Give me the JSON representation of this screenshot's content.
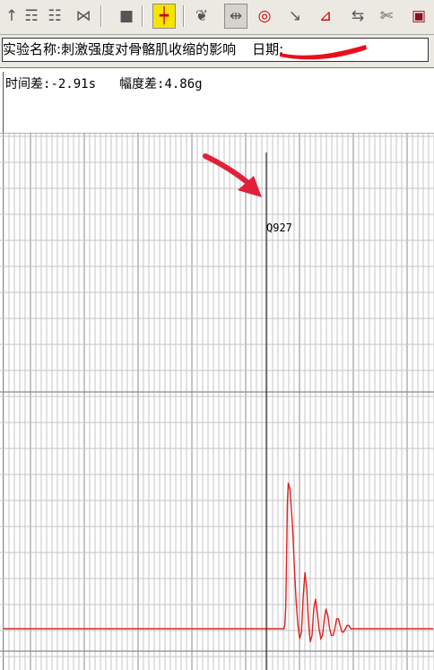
{
  "toolbar": {
    "buttons": [
      {
        "name": "arrow-up-icon",
        "glyph": "↑",
        "pressed": false
      },
      {
        "name": "stimulate-icon",
        "glyph": "☶",
        "pressed": false
      },
      {
        "name": "stack-icon",
        "glyph": "☷",
        "pressed": false
      },
      {
        "name": "scissors-pair-icon",
        "glyph": "⋈",
        "pressed": false
      },
      {
        "name": "gray-block-icon",
        "glyph": "■",
        "pressed": false
      },
      {
        "name": "crosshair-icon",
        "glyph": "┿",
        "pressed": true
      },
      {
        "name": "turtle-icon",
        "glyph": "❦",
        "pressed": false
      },
      {
        "name": "measure-icon",
        "glyph": "⇹",
        "pressed": true
      },
      {
        "name": "target-icon",
        "glyph": "◎",
        "pressed": false
      },
      {
        "name": "slope-icon",
        "glyph": "↘",
        "pressed": false
      },
      {
        "name": "peak-icon",
        "glyph": "⊿",
        "pressed": false
      },
      {
        "name": "align-icon",
        "glyph": "⇆",
        "pressed": false
      },
      {
        "name": "cut-icon",
        "glyph": "✄",
        "pressed": false
      },
      {
        "name": "book-icon",
        "glyph": "▣",
        "pressed": false
      }
    ]
  },
  "experiment": {
    "label": "实验名称:",
    "name": "刺激强度对骨骼肌收缩的影响",
    "date_label": "日期:"
  },
  "readout": {
    "time_label": "时间差:",
    "time_value": "-2.91s",
    "amp_label": "幅度差:",
    "amp_value": "4.86g"
  },
  "marker": {
    "label": "Q927"
  },
  "colors": {
    "trace": "#dd2222",
    "arrow": "#e0203a",
    "grid_major": "#8a8a8a",
    "grid_minor": "#c4c4c4",
    "redaction": "#e8101a"
  },
  "chart_data": {
    "type": "line",
    "title": "",
    "xlabel": "",
    "ylabel": "",
    "grid": true,
    "x": [
      0,
      4,
      8,
      12,
      16,
      18,
      20,
      21,
      22,
      23,
      24,
      25,
      27,
      30,
      32,
      34,
      36,
      38,
      40,
      42,
      44,
      46,
      48,
      50,
      52,
      54,
      56,
      58,
      60,
      62,
      64,
      66,
      68,
      70,
      72,
      74,
      76,
      78,
      80,
      82,
      84,
      86,
      88,
      90,
      92,
      94,
      96,
      98,
      100,
      104,
      108,
      112,
      116,
      120,
      124,
      128,
      132,
      136,
      140,
      144,
      148,
      152,
      156,
      160,
      166,
      172,
      178,
      184,
      190
    ],
    "y": [
      0,
      0,
      0,
      0,
      0,
      0,
      0,
      1,
      6,
      20,
      38,
      44,
      42,
      30,
      18,
      8,
      1,
      -3,
      -1,
      10,
      17,
      12,
      2,
      -4,
      -2,
      6,
      9,
      5,
      0,
      -3,
      -2,
      3,
      6,
      4,
      0,
      -2,
      -2,
      0,
      3,
      3,
      1,
      -1,
      -1,
      0,
      1,
      1,
      0,
      0,
      0,
      0,
      0,
      0,
      0,
      0,
      0,
      0,
      0,
      0,
      0,
      0,
      0,
      0,
      0,
      0,
      0,
      0,
      0,
      0,
      0
    ]
  }
}
